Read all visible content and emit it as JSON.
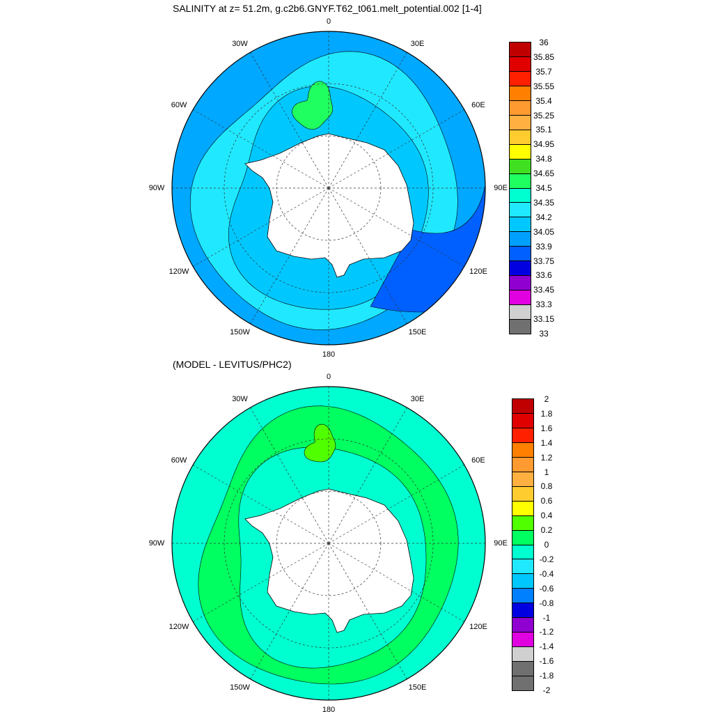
{
  "panels": [
    {
      "title": "SALINITY at z=  51.2m, g.c2b6.GNYF.T62_t061.melt_potential.002 [1-4]",
      "cx": 472,
      "cy": 270,
      "r": 225,
      "lon_labels": [
        "0",
        "30E",
        "60E",
        "90E",
        "120E",
        "150E",
        "180",
        "150W",
        "120W",
        "90W",
        "60W",
        "30W"
      ],
      "colorbar": {
        "labels": [
          "36",
          "35.85",
          "35.7",
          "35.55",
          "35.4",
          "35.25",
          "35.1",
          "34.95",
          "34.8",
          "34.65",
          "34.5",
          "34.35",
          "34.2",
          "34.05",
          "33.9",
          "33.75",
          "33.6",
          "33.45",
          "33.3",
          "33.15",
          "33"
        ],
        "colors": [
          "#c00000",
          "#e00000",
          "#ff2000",
          "#ff8000",
          "#ff9a30",
          "#ffb040",
          "#ffcc30",
          "#ffff00",
          "#40e020",
          "#20ff60",
          "#00ffd0",
          "#20e8ff",
          "#00c8ff",
          "#00a0ff",
          "#0060ff",
          "#0000e0",
          "#9000d0",
          "#e000e0",
          "#d0d0d0",
          "#707070"
        ]
      },
      "colors": {
        "outer": "#00a8ff",
        "mid1": "#20e8ff",
        "mid2": "#00c8ff",
        "inner_green": "#20ff60",
        "band_blue": "#0060ff",
        "land": "#ffffff"
      }
    },
    {
      "title": "(MODEL - LEVITUS/PHC2)",
      "cx": 472,
      "cy": 780,
      "r": 225,
      "lon_labels": [
        "0",
        "30E",
        "60E",
        "90E",
        "120E",
        "150E",
        "180",
        "150W",
        "120W",
        "90W",
        "60W",
        "30W"
      ],
      "colorbar": {
        "labels": [
          "2",
          "1.8",
          "1.6",
          "1.4",
          "1.2",
          "1",
          "0.8",
          "0.6",
          "0.4",
          "0.2",
          "0",
          "-0.2",
          "-0.4",
          "-0.6",
          "-0.8",
          "-1",
          "-1.2",
          "-1.4",
          "-1.6",
          "-1.8",
          "-2"
        ],
        "colors": [
          "#c00000",
          "#e00000",
          "#ff2000",
          "#ff8000",
          "#ff9a30",
          "#ffb040",
          "#ffcc30",
          "#ffff00",
          "#50ff00",
          "#00ff60",
          "#00ffd0",
          "#20e8ff",
          "#00c8ff",
          "#0080ff",
          "#0000e0",
          "#9000d0",
          "#e000e0",
          "#d0d0d0",
          "#707070",
          "#707070"
        ]
      },
      "colors": {
        "outer": "#00ffd0",
        "mid1": "#00ff60",
        "mid2": "#00ffd0",
        "inner_green": "#50ff00",
        "band_blue": "#00ffd0",
        "land": "#ffffff"
      }
    }
  ]
}
